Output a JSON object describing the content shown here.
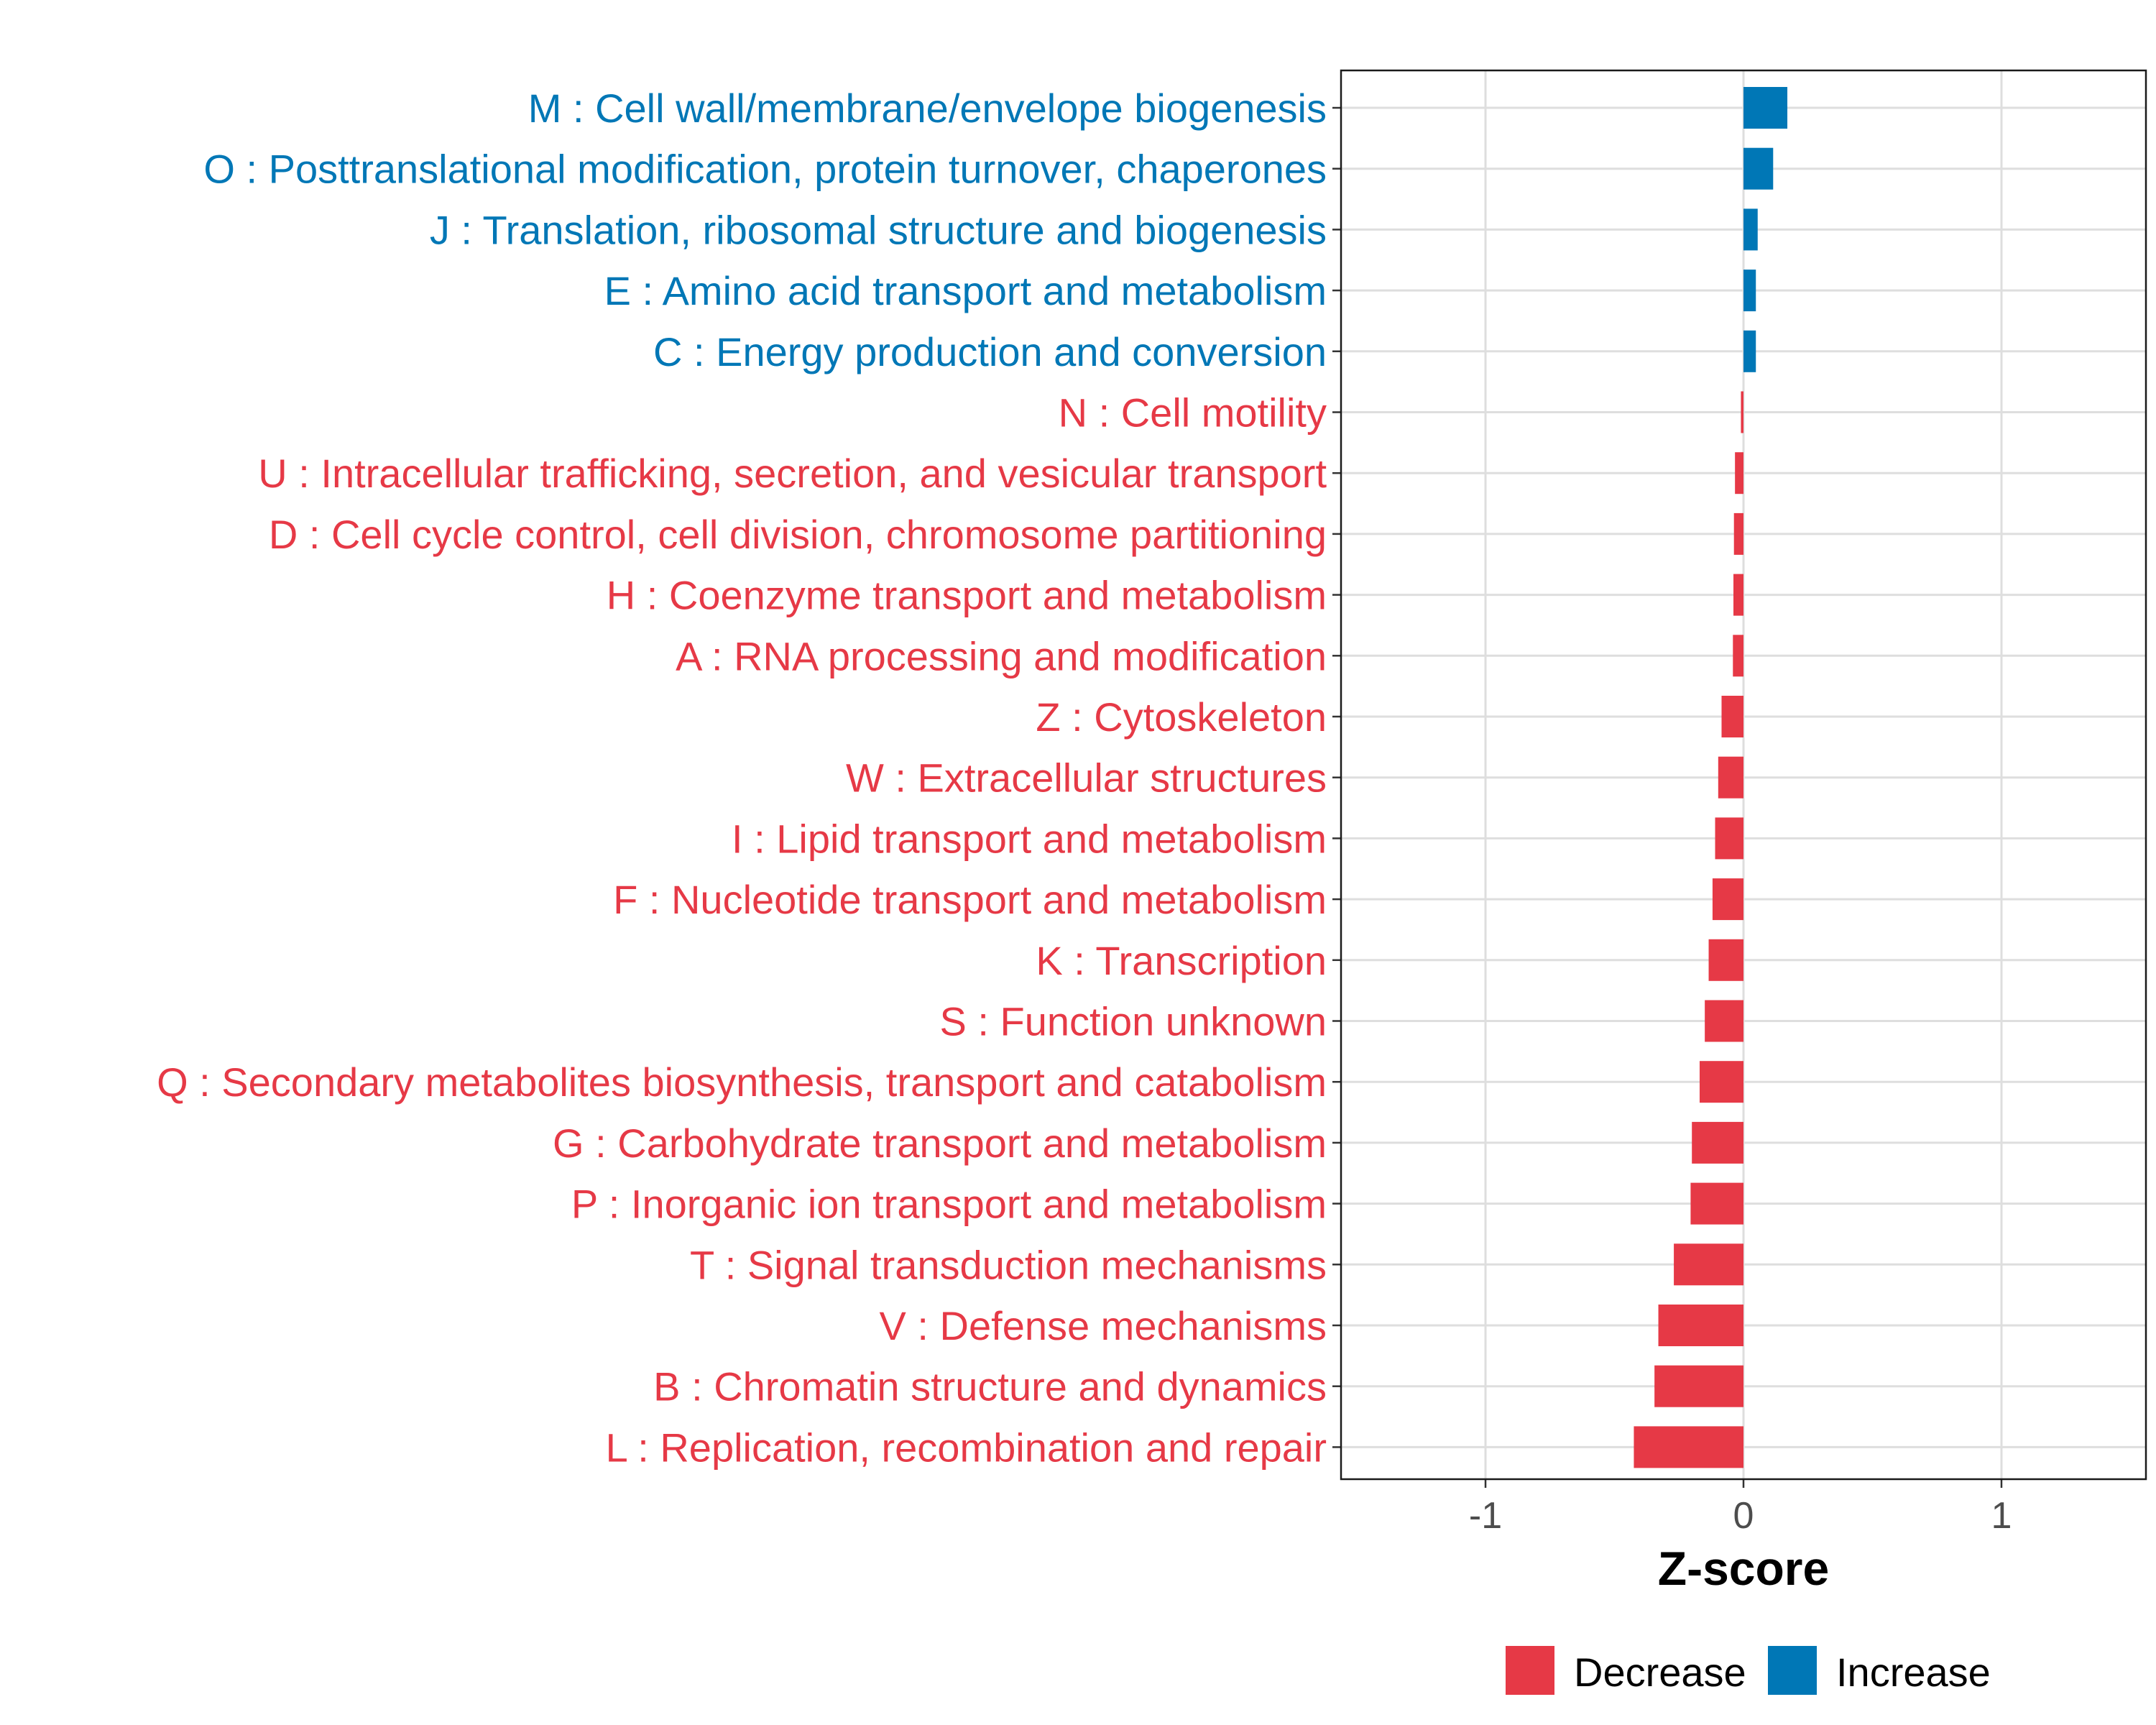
{
  "chart_data": {
    "type": "bar",
    "orientation": "horizontal",
    "title": "",
    "xlabel": "Z-score",
    "ylabel": "",
    "xlim": [
      -1.56,
      1.56
    ],
    "xticks": [
      -1,
      0,
      1
    ],
    "xtick_labels": [
      "-1",
      "0",
      "1"
    ],
    "grid": true,
    "legend_position": "bottom",
    "colors": {
      "Decrease": "#E63946",
      "Increase": "#0077B6"
    },
    "legend": [
      {
        "name": "Decrease",
        "color": "#E63946"
      },
      {
        "name": "Increase",
        "color": "#0077B6"
      }
    ],
    "categories": [
      "M : Cell wall/membrane/envelope biogenesis",
      "O : Posttranslational modification, protein turnover, chaperones",
      "J : Translation, ribosomal structure and biogenesis",
      "E : Amino acid transport and metabolism",
      "C : Energy production and conversion",
      "N : Cell motility",
      "U : Intracellular trafficking, secretion, and vesicular transport",
      "D : Cell cycle control, cell division, chromosome partitioning",
      "H : Coenzyme transport and metabolism",
      "A : RNA processing and modification",
      "Z : Cytoskeleton",
      "W : Extracellular structures",
      "I : Lipid transport and metabolism",
      "F : Nucleotide transport and metabolism",
      "K : Transcription",
      "S : Function unknown",
      "Q : Secondary metabolites biosynthesis, transport and catabolism",
      "G : Carbohydrate transport and metabolism",
      "P : Inorganic ion transport and metabolism",
      "T : Signal transduction mechanisms",
      "V : Defense mechanisms",
      "B : Chromatin structure and dynamics",
      "L : Replication, recombination and repair"
    ],
    "values": [
      0.17,
      0.115,
      0.055,
      0.048,
      0.048,
      -0.01,
      -0.033,
      -0.037,
      -0.039,
      -0.041,
      -0.085,
      -0.098,
      -0.11,
      -0.12,
      -0.135,
      -0.15,
      -0.17,
      -0.2,
      -0.205,
      -0.27,
      -0.33,
      -0.345,
      -0.425
    ],
    "groups": [
      "Increase",
      "Increase",
      "Increase",
      "Increase",
      "Increase",
      "Decrease",
      "Decrease",
      "Decrease",
      "Decrease",
      "Decrease",
      "Decrease",
      "Decrease",
      "Decrease",
      "Decrease",
      "Decrease",
      "Decrease",
      "Decrease",
      "Decrease",
      "Decrease",
      "Decrease",
      "Decrease",
      "Decrease",
      "Decrease"
    ]
  }
}
